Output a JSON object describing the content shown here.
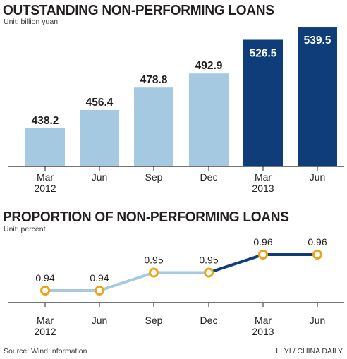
{
  "charts": {
    "loans": {
      "title": "OUTSTANDING NON-PERFORMING LOANS",
      "unit": "Unit: billion yuan"
    },
    "ratio": {
      "title": "PROPORTION OF NON-PERFORMING LOANS",
      "unit": "Unit: percent"
    }
  },
  "source": "Source: Wind Information",
  "credit": "LI YI / CHINA DAILY",
  "colors": {
    "light_blue": "#a6c9e2",
    "dark_blue": "#0e3d79",
    "marker_orange": "#f0a21b",
    "axis": "#231f20"
  },
  "chart_data": [
    {
      "type": "bar",
      "title": "OUTSTANDING NON-PERFORMING LOANS",
      "ylabel": "Unit: billion yuan",
      "categories": [
        [
          "Mar",
          "2012"
        ],
        [
          "Jun"
        ],
        [
          "Sep"
        ],
        [
          "Dec"
        ],
        [
          "Mar",
          "2013"
        ],
        [
          "Jun"
        ]
      ],
      "values": [
        438.2,
        456.4,
        478.8,
        492.9,
        526.5,
        539.5
      ],
      "value_labels": [
        "438.2",
        "456.4",
        "478.8",
        "492.9",
        "526.5",
        "539.5"
      ],
      "bar_colors": [
        "light_blue",
        "light_blue",
        "light_blue",
        "light_blue",
        "dark_blue",
        "dark_blue"
      ],
      "grid": false
    },
    {
      "type": "line",
      "title": "PROPORTION OF NON-PERFORMING LOANS",
      "ylabel": "Unit: percent",
      "categories": [
        [
          "Mar",
          "2012"
        ],
        [
          "Jun"
        ],
        [
          "Sep"
        ],
        [
          "Dec"
        ],
        [
          "Mar",
          "2013"
        ],
        [
          "Jun"
        ]
      ],
      "values": [
        0.94,
        0.94,
        0.95,
        0.95,
        0.96,
        0.96
      ],
      "value_labels": [
        "0.94",
        "0.94",
        "0.95",
        "0.95",
        "0.96",
        "0.96"
      ],
      "segment_colors": [
        "light_blue",
        "light_blue",
        "light_blue",
        "dark_blue",
        "dark_blue"
      ],
      "grid": false
    }
  ]
}
